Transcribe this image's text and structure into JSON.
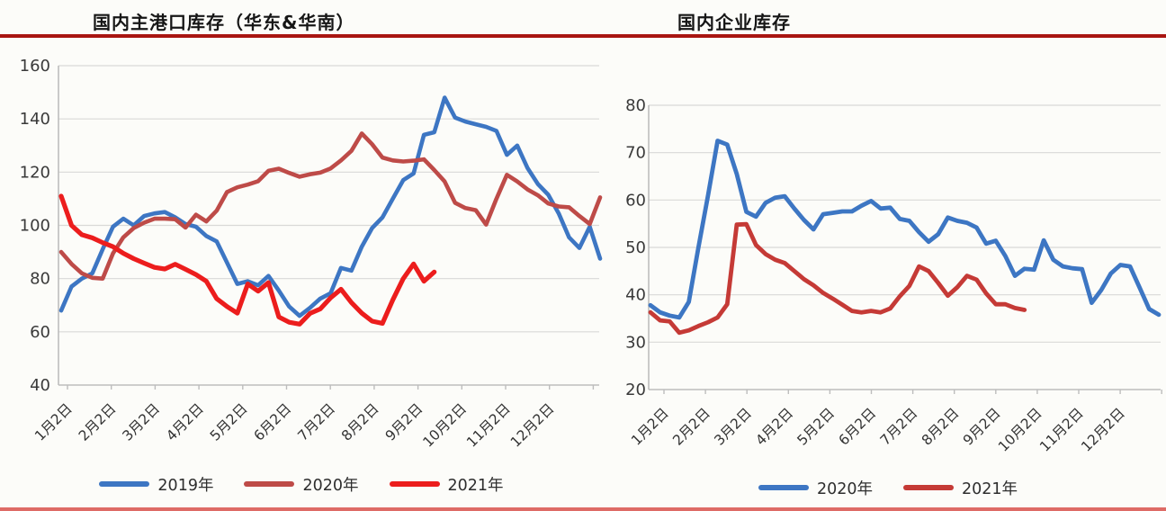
{
  "page": {
    "background_color": "#fcfcf9",
    "top_rule_color": "#a91511",
    "bottom_rule_color": "#de6b66"
  },
  "chart_data": [
    {
      "type": "line",
      "title": "国内主港口库存（华东&华南）",
      "xlabel": "",
      "ylabel": "",
      "ylim": [
        40,
        160
      ],
      "ystep": 20,
      "yticks": [
        160,
        140,
        120,
        100,
        80,
        60,
        40
      ],
      "grid": true,
      "legend_position": "bottom",
      "categories": [
        "1月2日",
        "2月2日",
        "3月2日",
        "4月2日",
        "5月2日",
        "6月2日",
        "7月2日",
        "8月2日",
        "9月2日",
        "10月2日",
        "11月2日",
        "12月2日"
      ],
      "x_unit": "weekly points, Jan–Dec",
      "series": [
        {
          "name": "2019年",
          "color": "#3d76c3",
          "values": [
            68,
            77,
            80,
            82,
            91,
            99.5,
            102.5,
            100,
            103.5,
            104.5,
            105,
            103,
            100.5,
            99.5,
            96,
            94,
            86,
            78,
            79,
            77.5,
            81,
            75.5,
            69.5,
            66,
            69,
            72.5,
            74.5,
            84,
            83,
            92,
            99,
            103,
            110,
            117,
            119.5,
            134,
            135,
            148,
            140.5,
            139,
            138,
            137,
            135.5,
            126.5,
            130,
            121.5,
            115.5,
            111.5,
            104.5,
            95.5,
            91.5,
            99.5,
            87.5
          ]
        },
        {
          "name": "2020年",
          "color": "#be4b48",
          "values": [
            90,
            85.5,
            82,
            80.3,
            80,
            89.5,
            95.5,
            99,
            101,
            102.5,
            102.5,
            102.3,
            99.2,
            104,
            101.5,
            105.5,
            112.5,
            114.3,
            115.3,
            116.6,
            120.5,
            121.3,
            119.7,
            118.3,
            119.2,
            119.8,
            121.4,
            124.4,
            128,
            134.5,
            130.5,
            125.5,
            124.4,
            124,
            124.3,
            124.8,
            120.8,
            116.5,
            108.5,
            106.5,
            105.7,
            100.3,
            110,
            119,
            116.5,
            113.5,
            111.3,
            108.2,
            107.1,
            106.8,
            103.5,
            100.5,
            110.5
          ]
        },
        {
          "name": "2021年",
          "color": "#ec1d1d",
          "values": [
            111,
            100,
            96.5,
            95.3,
            93.5,
            92,
            89.5,
            87.5,
            85.8,
            84.2,
            83.6,
            85.4,
            83.5,
            81.5,
            79,
            72.5,
            69.5,
            67,
            78,
            75.3,
            78.5,
            65.6,
            63.6,
            62.9,
            66.9,
            68.6,
            72.8,
            76,
            71,
            67,
            64,
            63.2,
            72,
            80,
            85.5,
            79,
            82.5
          ]
        }
      ]
    },
    {
      "type": "line",
      "title": "国内企业库存",
      "xlabel": "",
      "ylabel": "",
      "ylim": [
        20,
        80
      ],
      "ystep": 10,
      "yticks": [
        80,
        70,
        60,
        50,
        40,
        30,
        20
      ],
      "grid": true,
      "legend_position": "bottom",
      "categories": [
        "1月2日",
        "2月2日",
        "3月2日",
        "4月2日",
        "5月2日",
        "6月2日",
        "7月2日",
        "8月2日",
        "9月2日",
        "10月2日",
        "11月2日",
        "12月2日"
      ],
      "x_unit": "weekly points, Jan–Dec",
      "series": [
        {
          "name": "2020年",
          "color": "#3d76c3",
          "values": [
            37.8,
            36.3,
            35.6,
            35.2,
            38.5,
            50,
            61,
            72.5,
            71.7,
            65.5,
            57.5,
            56.5,
            59.4,
            60.5,
            60.8,
            58.2,
            55.8,
            53.8,
            57,
            57.3,
            57.6,
            57.6,
            58.8,
            59.8,
            58.2,
            58.4,
            56,
            55.6,
            53.2,
            51.2,
            52.8,
            56.3,
            55.6,
            55.2,
            54.2,
            50.8,
            51.4,
            48.2,
            44,
            45.5,
            45.3,
            51.5,
            47.4,
            46,
            45.6,
            45.4,
            38.3,
            41,
            44.5,
            46.3,
            46,
            41.5,
            37,
            35.8
          ]
        },
        {
          "name": "2021年",
          "color": "#c53a36",
          "values": [
            36.3,
            34.6,
            34.4,
            32,
            32.5,
            33.4,
            34.2,
            35.2,
            38,
            54.8,
            54.9,
            50.5,
            48.6,
            47.4,
            46.7,
            45,
            43.3,
            42,
            40.4,
            39.2,
            37.9,
            36.6,
            36.3,
            36.6,
            36.3,
            37.1,
            39.7,
            41.9,
            46,
            45,
            42.5,
            39.8,
            41.6,
            44,
            43.2,
            40.3,
            38,
            38,
            37.2,
            36.8
          ]
        }
      ]
    }
  ]
}
